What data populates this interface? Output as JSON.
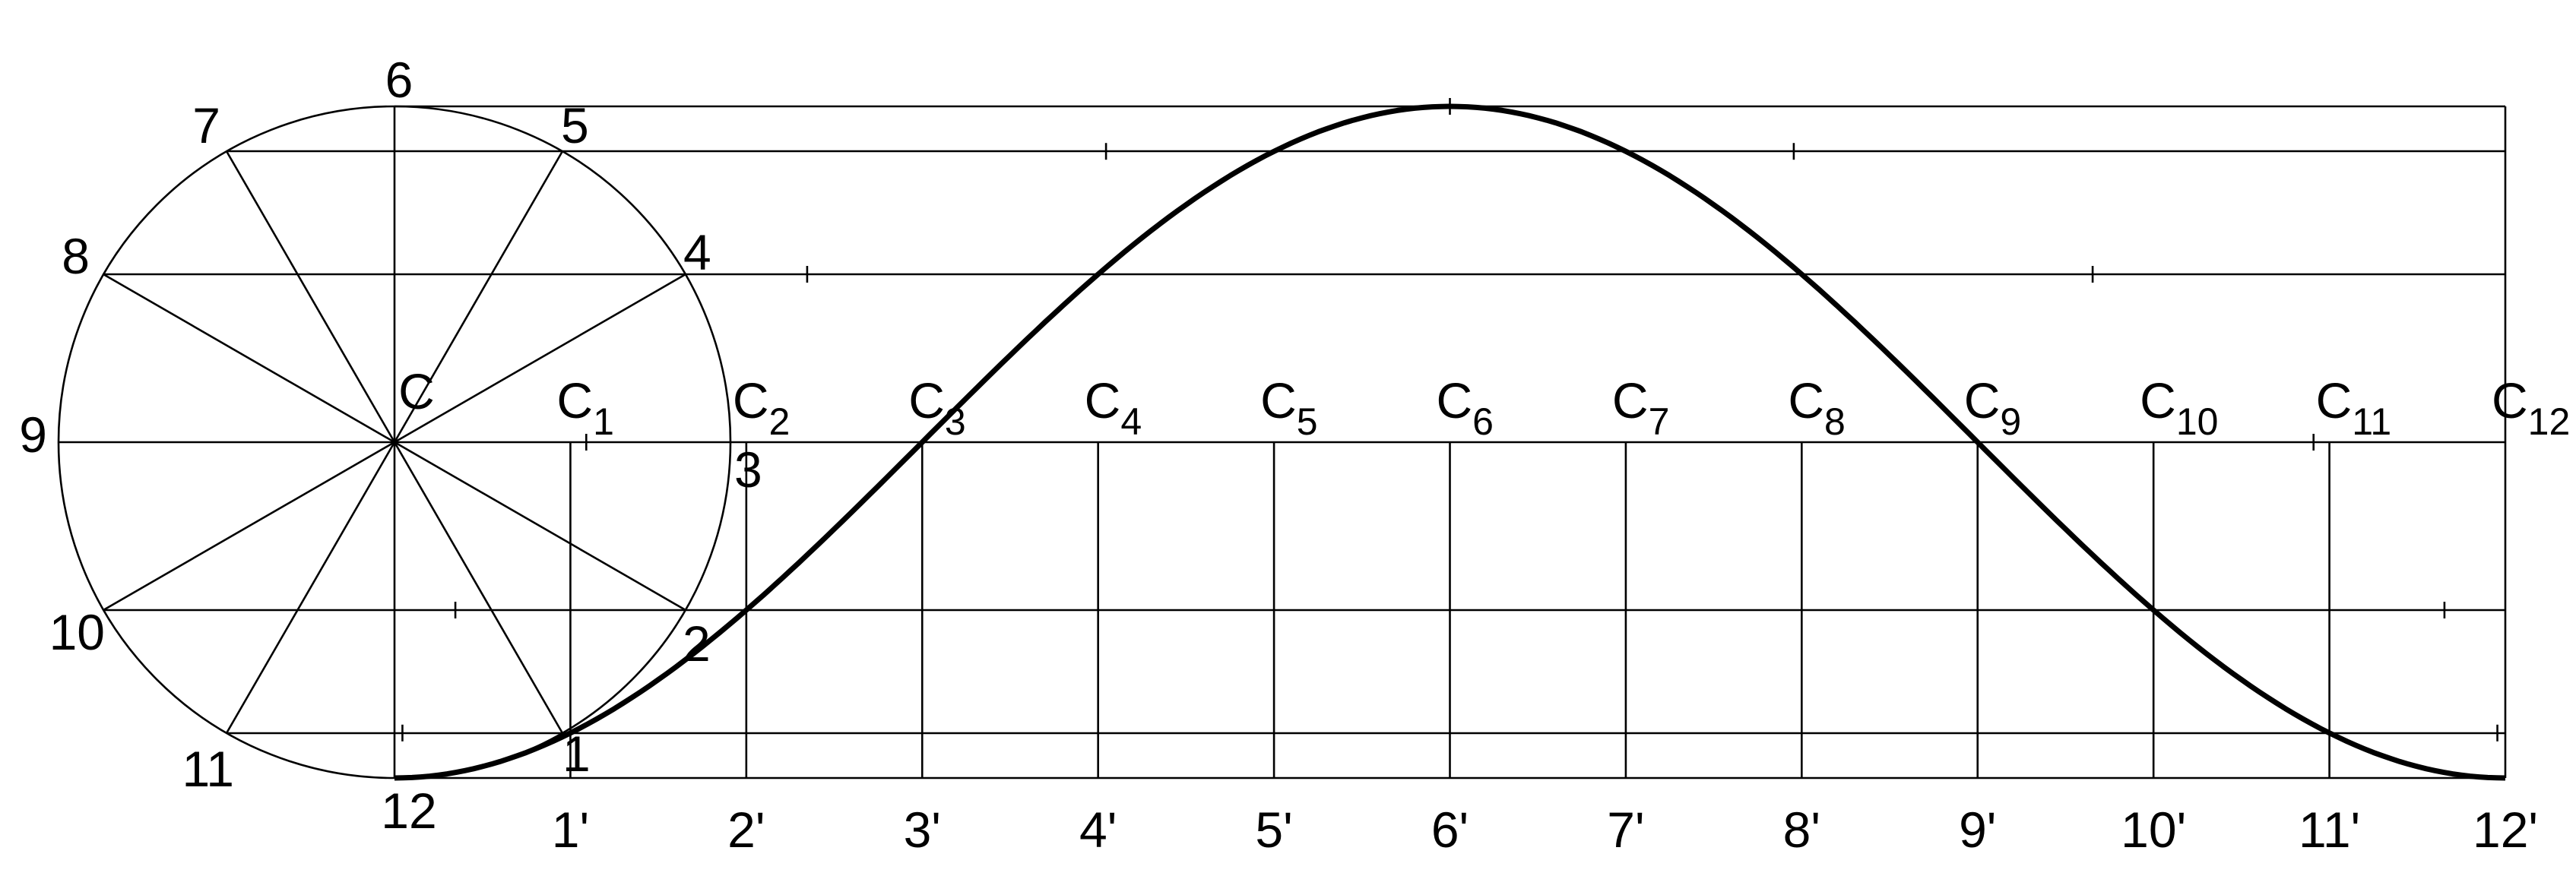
{
  "diagram": {
    "center_label": "C",
    "circle_labels": [
      "1",
      "2",
      "3",
      "4",
      "5",
      "6",
      "7",
      "8",
      "9",
      "10",
      "11",
      "12"
    ],
    "base_labels": [
      "1'",
      "2'",
      "3'",
      "4'",
      "5'",
      "6'",
      "7'",
      "8'",
      "9'",
      "10'",
      "11'",
      "12'"
    ],
    "center_positions": [
      {
        "letter": "C",
        "sub": "1"
      },
      {
        "letter": "C",
        "sub": "2"
      },
      {
        "letter": "C",
        "sub": "3"
      },
      {
        "letter": "C",
        "sub": "4"
      },
      {
        "letter": "C",
        "sub": "5"
      },
      {
        "letter": "C",
        "sub": "6"
      },
      {
        "letter": "C",
        "sub": "7"
      },
      {
        "letter": "C",
        "sub": "8"
      },
      {
        "letter": "C",
        "sub": "9"
      },
      {
        "letter": "C",
        "sub": "10"
      },
      {
        "letter": "C",
        "sub": "11"
      },
      {
        "letter": "C",
        "sub": "12"
      }
    ]
  }
}
